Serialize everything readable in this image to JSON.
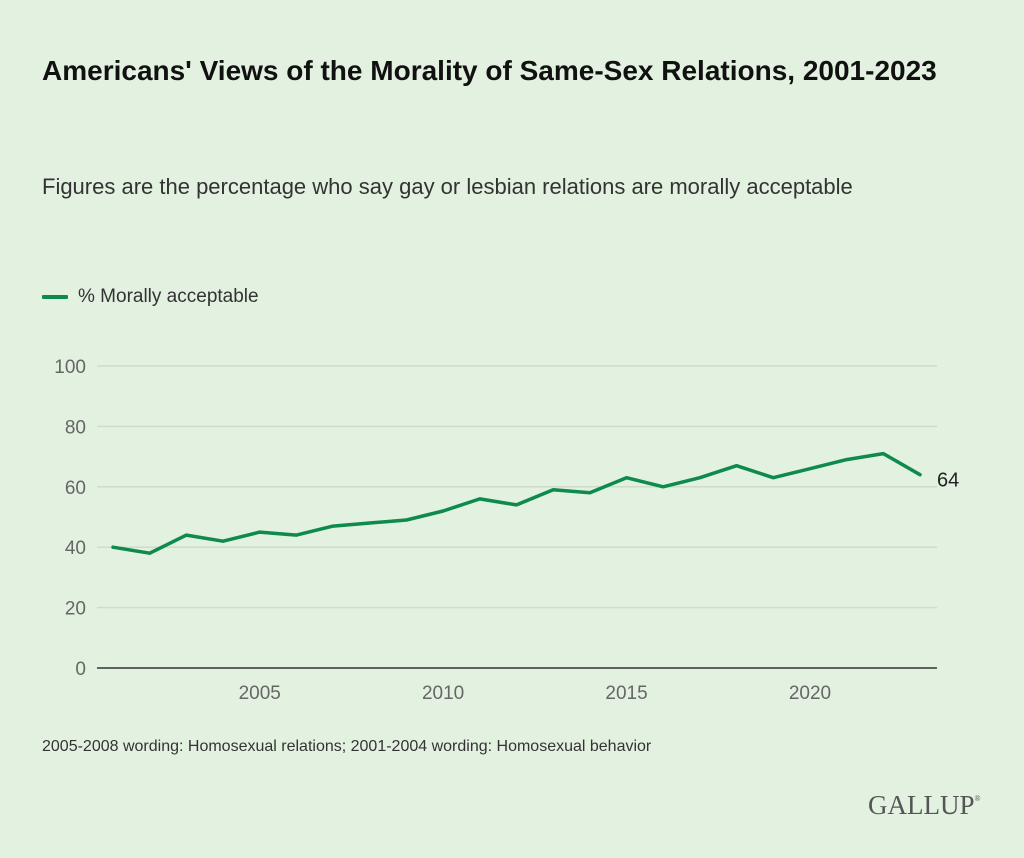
{
  "colors": {
    "background": "#e3f1e1",
    "line": "#0e8a4c",
    "gridline": "#cfdccd",
    "axis": "#333333"
  },
  "brand": "GALLUP",
  "brand_mark": "®",
  "chart_data": {
    "type": "line",
    "title": "Americans' Views of the Morality of Same-Sex Relations, 2001-2023",
    "subtitle": "Figures are the percentage who say gay or lesbian relations are morally acceptable",
    "xlabel": "",
    "ylabel": "",
    "x": [
      2001,
      2002,
      2003,
      2004,
      2005,
      2006,
      2007,
      2008,
      2009,
      2010,
      2011,
      2012,
      2013,
      2014,
      2015,
      2016,
      2017,
      2018,
      2019,
      2020,
      2021,
      2022,
      2023
    ],
    "series": [
      {
        "name": "% Morally acceptable",
        "values": [
          40,
          38,
          44,
          42,
          45,
          44,
          47,
          48,
          49,
          52,
          56,
          54,
          59,
          58,
          63,
          60,
          63,
          67,
          63,
          66,
          69,
          71,
          64
        ]
      }
    ],
    "xlim": [
      2000.55,
      2023.4
    ],
    "ylim": [
      0,
      100
    ],
    "y_ticks": [
      0,
      20,
      40,
      60,
      80,
      100
    ],
    "x_ticks": [
      2005,
      2010,
      2015,
      2020
    ],
    "grid": true,
    "legend": "top-left",
    "end_label": "64",
    "note": "2005-2008 wording: Homosexual relations; 2001-2004 wording: Homosexual behavior"
  }
}
